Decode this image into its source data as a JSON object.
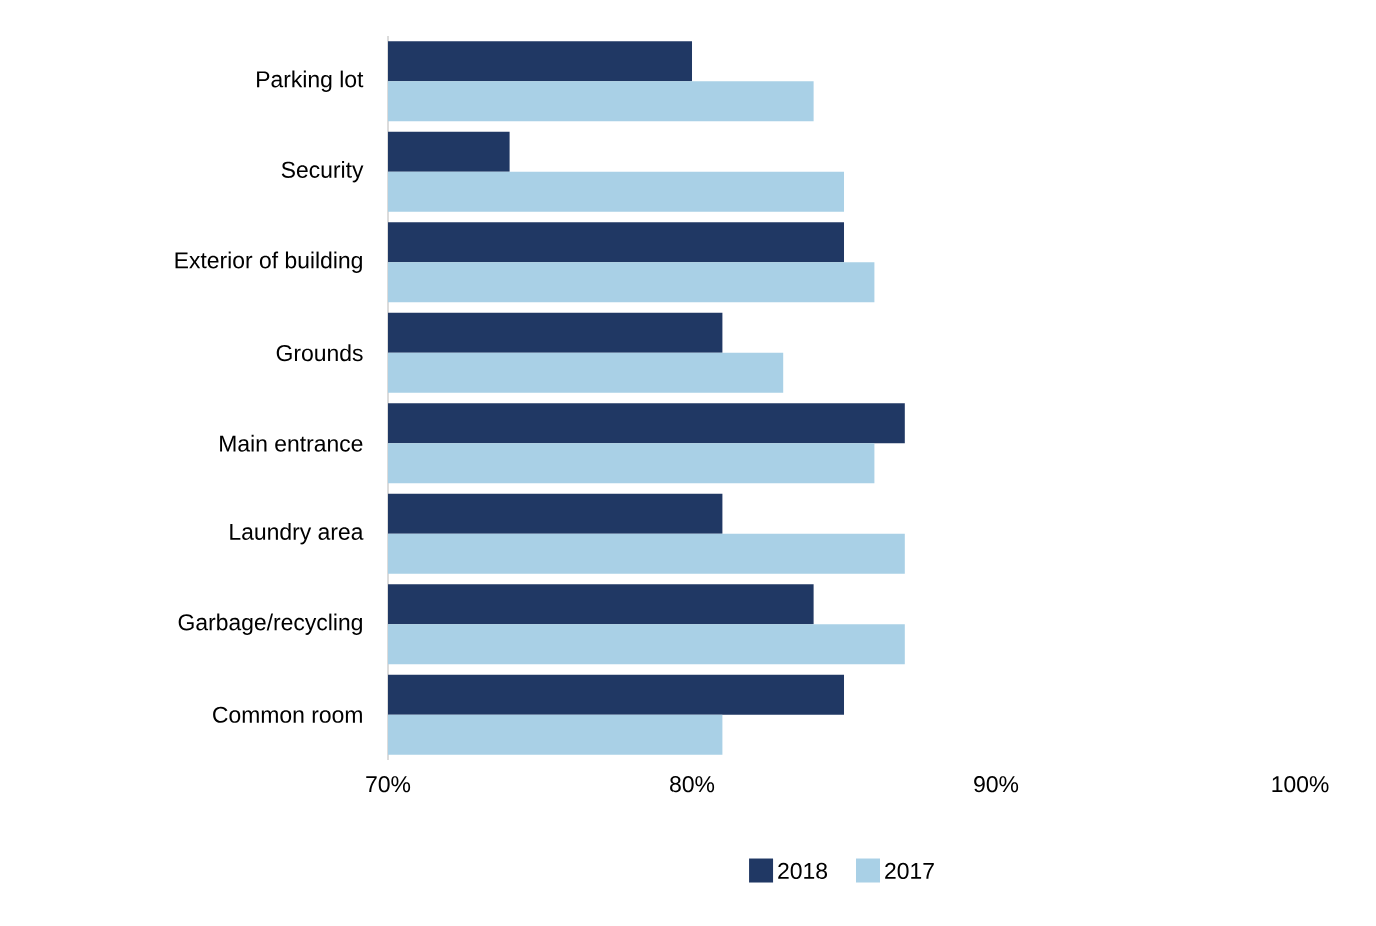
{
  "chart_data": {
    "type": "bar",
    "orientation": "horizontal",
    "categories": [
      "Parking lot",
      "Security",
      "Exterior of building",
      "Grounds",
      "Main entrance",
      "Laundry area",
      "Garbage/recycling",
      "Common room"
    ],
    "series": [
      {
        "name": "2018",
        "color": "#203864",
        "values": [
          80,
          74,
          85,
          81,
          87,
          81,
          84,
          85
        ]
      },
      {
        "name": "2017",
        "color": "#a9d0e6",
        "values": [
          84,
          85,
          86,
          83,
          86,
          87,
          87,
          81
        ]
      }
    ],
    "xlim": [
      70,
      100
    ],
    "xticks": [
      {
        "value": 70,
        "label": "70%"
      },
      {
        "value": 80,
        "label": "80%"
      },
      {
        "value": 90,
        "label": "90%"
      },
      {
        "value": 100,
        "label": "100%"
      }
    ],
    "legend": "bottom",
    "grid": false
  }
}
